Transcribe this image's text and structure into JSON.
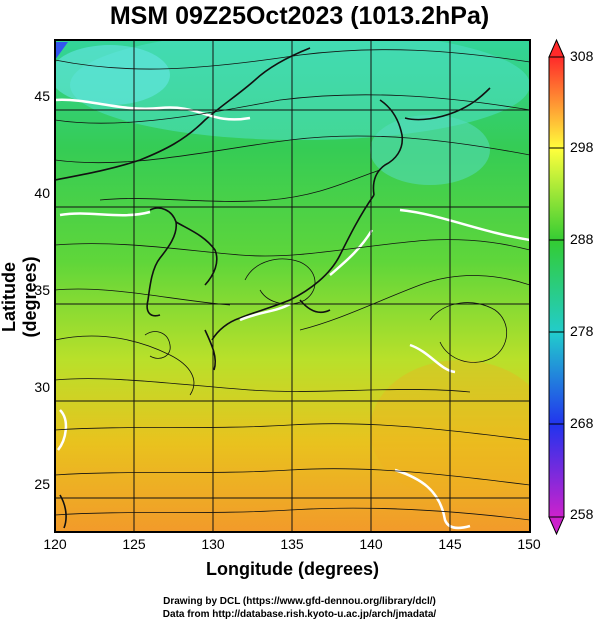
{
  "title": "MSM 09Z25Oct2023 (1013.2hPa)",
  "xlabel": "Longitude (degrees)",
  "ylabel": "Latitude  (degrees)",
  "x_ticks": [
    "120",
    "125",
    "130",
    "135",
    "140",
    "145",
    "150"
  ],
  "y_ticks": [
    "45",
    "40",
    "35",
    "30",
    "25"
  ],
  "colorbar": {
    "ticks": [
      "308",
      "298",
      "288",
      "278",
      "268",
      "258"
    ],
    "colors": [
      "#ff2a2a",
      "#ffff3c",
      "#33cc33",
      "#22cccc",
      "#2244ff",
      "#cc22cc"
    ]
  },
  "credits": [
    "Drawing by DCL (https://www.gfd-dennou.org/library/dcl/)",
    "Data from http://database.rish.kyoto-u.ac.jp/arch/jmadata/"
  ],
  "map_extent": {
    "lon": [
      120,
      150
    ],
    "lat": [
      22.4,
      47.6
    ]
  }
}
